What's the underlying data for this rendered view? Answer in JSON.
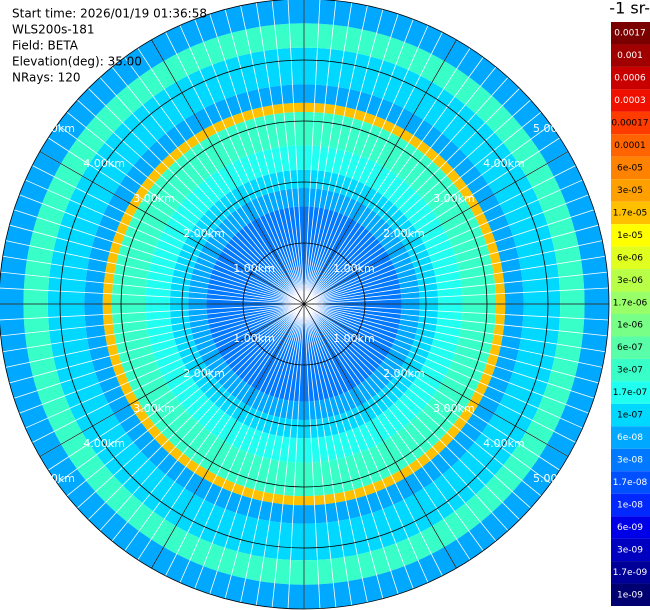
{
  "chart_data": {
    "type": "ppi",
    "info": [
      "Start time: 2026/01/19 01:36:58",
      "WLS200s-181",
      "Field: BETA",
      "Elevation(deg): 35.00",
      "NRays: 120"
    ],
    "colorbar_title": "-1 sr-",
    "rlim": [
      0,
      5
    ],
    "rings": [
      {
        "value": 1,
        "label": "1.00km"
      },
      {
        "value": 2,
        "label": "2.00km"
      },
      {
        "value": 3,
        "label": "3.00km"
      },
      {
        "value": 4,
        "label": "4.00km"
      },
      {
        "value": 5,
        "label": "5.00km"
      }
    ],
    "range_bins": [
      0.1,
      0.3,
      1.0,
      1.6,
      1.9,
      2.2,
      2.6,
      3.0,
      3.15,
      3.3,
      3.6,
      4.2,
      4.6,
      5.0
    ],
    "values": [
      1.7e-08,
      3e-08,
      3e-08,
      6e-08,
      1e-07,
      1.7e-07,
      3e-07,
      3e-07,
      1.7e-05,
      6e-08,
      1e-07,
      3e-07,
      6e-08
    ],
    "colorbar_ticks": [
      {
        "value": 0.0017,
        "label": "0.0017"
      },
      {
        "value": 0.001,
        "label": "0.001"
      },
      {
        "value": 0.0006,
        "label": "0.0006"
      },
      {
        "value": 0.0003,
        "label": "0.0003"
      },
      {
        "value": 0.00017,
        "label": "0.00017"
      },
      {
        "value": 0.0001,
        "label": "0.0001"
      },
      {
        "value": 6e-05,
        "label": "6e-05"
      },
      {
        "value": 3e-05,
        "label": "3e-05"
      },
      {
        "value": 1.7e-05,
        "label": "1.7e-05"
      },
      {
        "value": 1e-05,
        "label": "1e-05"
      },
      {
        "value": 6e-06,
        "label": "6e-06"
      },
      {
        "value": 3e-06,
        "label": "3e-06"
      },
      {
        "value": 1.7e-06,
        "label": "1.7e-06"
      },
      {
        "value": 1e-06,
        "label": "1e-06"
      },
      {
        "value": 6e-07,
        "label": "6e-07"
      },
      {
        "value": 3e-07,
        "label": "3e-07"
      },
      {
        "value": 1.7e-07,
        "label": "1.7e-07"
      },
      {
        "value": 1e-07,
        "label": "1e-07"
      },
      {
        "value": 6e-08,
        "label": "6e-08"
      },
      {
        "value": 3e-08,
        "label": "3e-08"
      },
      {
        "value": 1.7e-08,
        "label": "1.7e-08"
      },
      {
        "value": 1e-08,
        "label": "1e-08"
      },
      {
        "value": 6e-09,
        "label": "6e-09"
      },
      {
        "value": 3e-09,
        "label": "3e-09"
      },
      {
        "value": 1.7e-09,
        "label": "1.7e-09"
      },
      {
        "value": 1e-09,
        "label": "1e-09"
      }
    ],
    "colorbar_colors": [
      "#7a0000",
      "#a00000",
      "#c80000",
      "#f01000",
      "#ff3c00",
      "#ff6400",
      "#ff8200",
      "#ffa000",
      "#ffc000",
      "#ffff00",
      "#e0ff20",
      "#b8ff48",
      "#98ff68",
      "#78ff88",
      "#58ffa8",
      "#38ffc8",
      "#20fff0",
      "#00d8ff",
      "#00a8ff",
      "#0078ff",
      "#0050ff",
      "#0028ff",
      "#0000e8",
      "#0000c0",
      "#000098",
      "#000070"
    ]
  }
}
